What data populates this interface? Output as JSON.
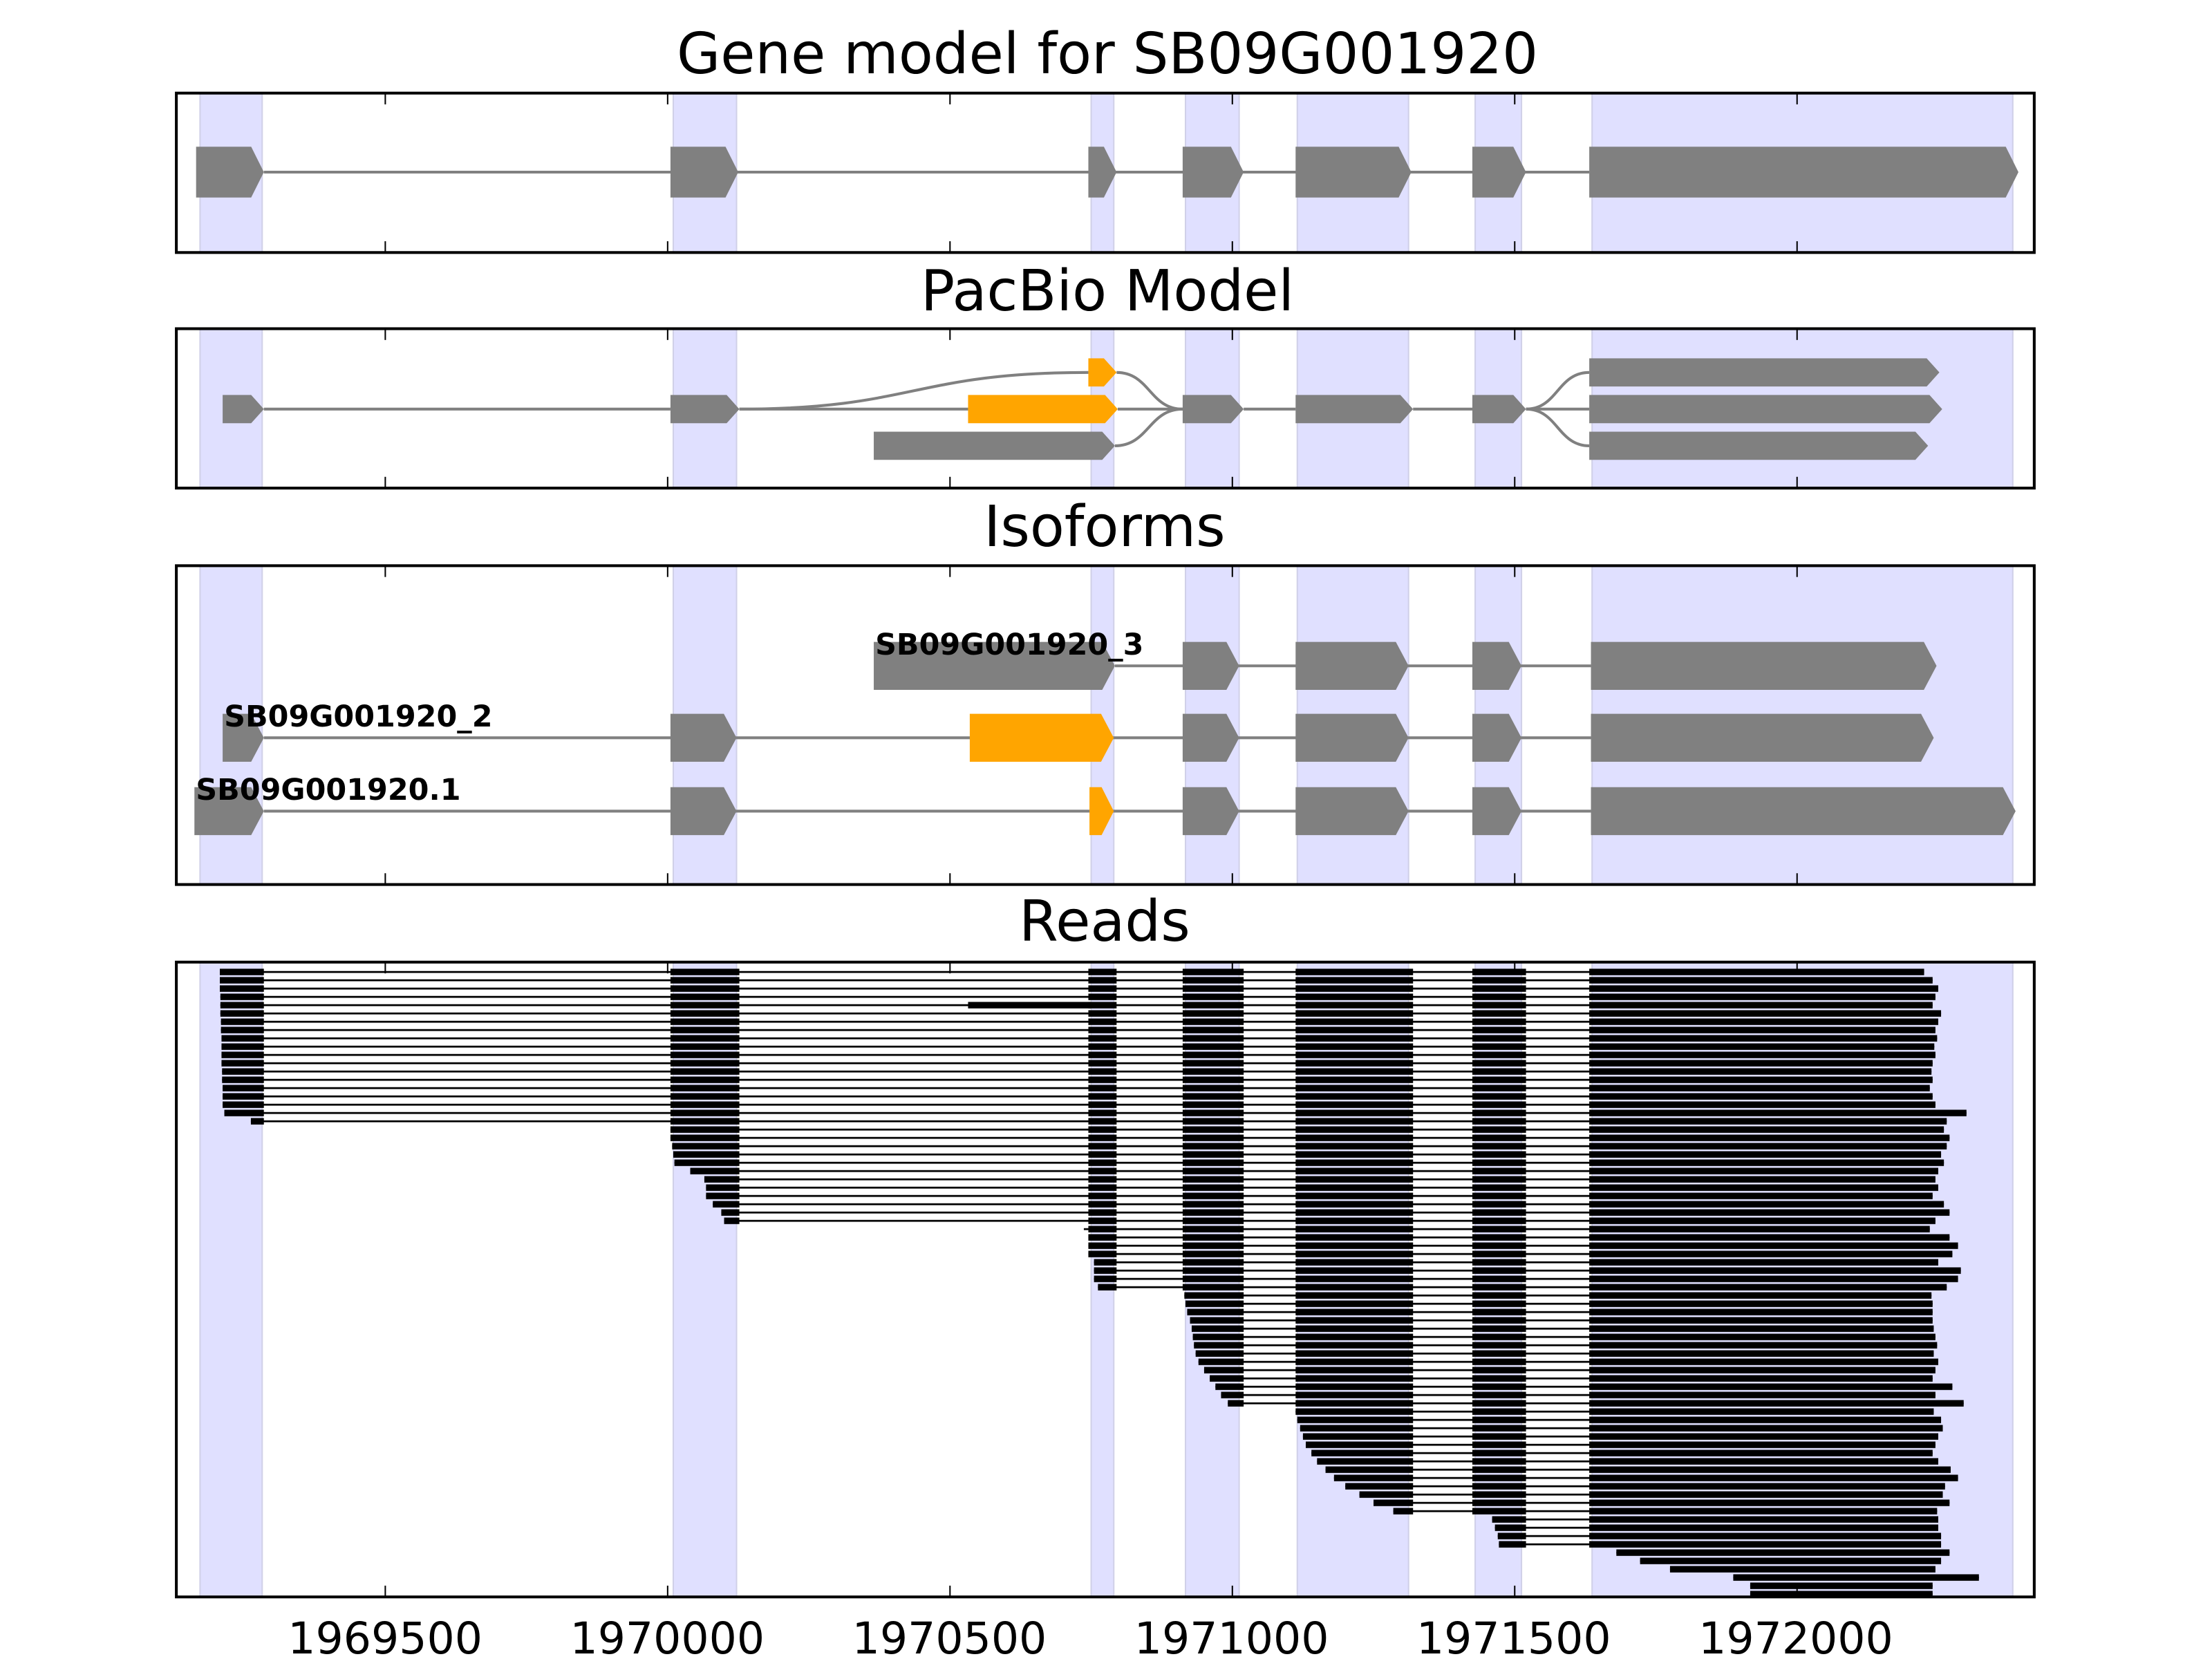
{
  "chart_data": {
    "type": "gene-track",
    "xlim": [
      1969130,
      1972420
    ],
    "xticks": [
      1969500,
      1970000,
      1970500,
      1971000,
      1971500,
      1972000
    ],
    "xtick_labels": [
      "1969500",
      "1970000",
      "1970500",
      "1971000",
      "1971500",
      "1972000"
    ],
    "colors": {
      "exon": "#808080",
      "highlight": "#FFA500",
      "shade": "#E0E0FF",
      "shade_edge": "#D0D0E8",
      "read": "#000000",
      "intron": "#808080"
    },
    "shaded_regions": [
      [
        1969172,
        1969282
      ],
      [
        1970010,
        1970122
      ],
      [
        1970750,
        1970790
      ],
      [
        1970917,
        1971012
      ],
      [
        1971115,
        1971312
      ],
      [
        1971430,
        1971512
      ],
      [
        1971637,
        1972382
      ]
    ],
    "panels": [
      {
        "title": "Gene model for SB09G001920"
      },
      {
        "title": "PacBio Model"
      },
      {
        "title": "Isoforms"
      },
      {
        "title": "Reads"
      }
    ],
    "gene_model": {
      "exons": [
        [
          1969165,
          1969285
        ],
        [
          1970005,
          1970125
        ],
        [
          1970745,
          1970795
        ],
        [
          1970912,
          1971020
        ],
        [
          1971112,
          1971317
        ],
        [
          1971425,
          1971520
        ],
        [
          1971632,
          1972392
        ]
      ]
    },
    "pacbio": {
      "rows": [
        {
          "exons": [
            [
              1970745,
              1970795,
              "highlight"
            ],
            [
              1971632,
              1972252,
              "exon"
            ]
          ]
        },
        {
          "exons": [
            [
              1969212,
              1969285,
              "exon"
            ],
            [
              1970005,
              1970127,
              "exon"
            ],
            [
              1970532,
              1970797,
              "highlight"
            ],
            [
              1970912,
              1971020,
              "exon"
            ],
            [
              1971112,
              1971320,
              "exon"
            ],
            [
              1971425,
              1971520,
              "exon"
            ],
            [
              1971632,
              1972257,
              "exon"
            ]
          ]
        },
        {
          "exons": [
            [
              1970365,
              1970792,
              "exon"
            ],
            [
              1971632,
              1972232,
              "exon"
            ]
          ]
        }
      ],
      "edges": [
        [
          1,
          1969285,
          1,
          1970005
        ],
        [
          1,
          1970127,
          1,
          1970532
        ],
        [
          1,
          1970127,
          0,
          1970745
        ],
        [
          0,
          1970795,
          1,
          1970912
        ],
        [
          1,
          1970797,
          1,
          1970912
        ],
        [
          2,
          1970792,
          1,
          1970912
        ],
        [
          1,
          1971020,
          1,
          1971112
        ],
        [
          1,
          1971320,
          1,
          1971425
        ],
        [
          1,
          1971520,
          0,
          1971632
        ],
        [
          1,
          1971520,
          1,
          1971632
        ],
        [
          1,
          1971520,
          2,
          1971632
        ]
      ]
    },
    "isoforms": [
      {
        "label": "SB09G001920_3",
        "exons": [
          [
            1970365,
            1970792,
            "exon"
          ],
          [
            1970912,
            1971012,
            "exon"
          ],
          [
            1971112,
            1971312,
            "exon"
          ],
          [
            1971425,
            1971512,
            "exon"
          ],
          [
            1971635,
            1972247,
            "exon"
          ]
        ]
      },
      {
        "label": "SB09G001920_2",
        "exons": [
          [
            1969212,
            1969285,
            "exon"
          ],
          [
            1970005,
            1970122,
            "exon"
          ],
          [
            1970535,
            1970790,
            "highlight"
          ],
          [
            1970912,
            1971012,
            "exon"
          ],
          [
            1971112,
            1971312,
            "exon"
          ],
          [
            1971425,
            1971512,
            "exon"
          ],
          [
            1971635,
            1972242,
            "exon"
          ]
        ]
      },
      {
        "label": "SB09G001920.1",
        "exons": [
          [
            1969162,
            1969285,
            "exon"
          ],
          [
            1970005,
            1970122,
            "exon"
          ],
          [
            1970747,
            1970790,
            "highlight"
          ],
          [
            1970912,
            1971012,
            "exon"
          ],
          [
            1971112,
            1971312,
            "exon"
          ],
          [
            1971425,
            1971512,
            "exon"
          ],
          [
            1971635,
            1972387,
            "exon"
          ]
        ]
      }
    ],
    "reads": {
      "exons": [
        [
          1969165,
          1969285
        ],
        [
          1970005,
          1970127
        ],
        [
          1970745,
          1970795
        ],
        [
          1970912,
          1971020
        ],
        [
          1971112,
          1971320
        ],
        [
          1971425,
          1971520
        ],
        [
          1971632,
          1972400
        ]
      ],
      "retained": [
        [
          4,
          1970532,
          1970750
        ]
      ],
      "intervals": [
        [
          1969207,
          1972225
        ],
        [
          1969207,
          1972240
        ],
        [
          1969207,
          1972250
        ],
        [
          1969208,
          1972245
        ],
        [
          1969208,
          1972240
        ],
        [
          1969208,
          1972255
        ],
        [
          1969209,
          1972250
        ],
        [
          1969209,
          1972245
        ],
        [
          1969210,
          1972248
        ],
        [
          1969210,
          1972243
        ],
        [
          1969210,
          1972245
        ],
        [
          1969210,
          1972240
        ],
        [
          1969211,
          1972238
        ],
        [
          1969211,
          1972240
        ],
        [
          1969212,
          1972235
        ],
        [
          1969212,
          1972240
        ],
        [
          1969212,
          1972245
        ],
        [
          1969215,
          1972300
        ],
        [
          1969262,
          1972265
        ],
        [
          1970005,
          1972260
        ],
        [
          1970005,
          1972270
        ],
        [
          1970008,
          1972265
        ],
        [
          1970010,
          1972255
        ],
        [
          1970012,
          1972260
        ],
        [
          1970040,
          1972250
        ],
        [
          1970065,
          1972245
        ],
        [
          1970068,
          1972250
        ],
        [
          1970068,
          1972240
        ],
        [
          1970080,
          1972260
        ],
        [
          1970095,
          1972270
        ],
        [
          1970100,
          1972245
        ],
        [
          1970737,
          1972235
        ],
        [
          1970745,
          1972270
        ],
        [
          1970745,
          1972285
        ],
        [
          1970745,
          1972275
        ],
        [
          1970755,
          1972250
        ],
        [
          1970755,
          1972290
        ],
        [
          1970755,
          1972285
        ],
        [
          1970762,
          1972265
        ],
        [
          1970915,
          1972238
        ],
        [
          1970917,
          1972240
        ],
        [
          1970920,
          1972240
        ],
        [
          1970925,
          1972240
        ],
        [
          1970928,
          1972242
        ],
        [
          1970930,
          1972245
        ],
        [
          1970932,
          1972248
        ],
        [
          1970935,
          1972242
        ],
        [
          1970940,
          1972250
        ],
        [
          1970950,
          1972245
        ],
        [
          1970960,
          1972240
        ],
        [
          1970970,
          1972275
        ],
        [
          1970980,
          1972245
        ],
        [
          1970992,
          1972295
        ],
        [
          1971112,
          1972242
        ],
        [
          1971115,
          1972255
        ],
        [
          1971120,
          1972258
        ],
        [
          1971125,
          1972250
        ],
        [
          1971130,
          1972245
        ],
        [
          1971140,
          1972240
        ],
        [
          1971150,
          1972250
        ],
        [
          1971165,
          1972272
        ],
        [
          1971180,
          1972285
        ],
        [
          1971200,
          1972262
        ],
        [
          1971225,
          1972258
        ],
        [
          1971250,
          1972270
        ],
        [
          1971285,
          1972248
        ],
        [
          1971460,
          1972250
        ],
        [
          1971465,
          1972250
        ],
        [
          1971470,
          1972255
        ],
        [
          1971472,
          1972255
        ],
        [
          1971680,
          1972270
        ],
        [
          1971722,
          1972255
        ],
        [
          1971775,
          1972245
        ],
        [
          1971887,
          1972322
        ],
        [
          1971917,
          1972240
        ],
        [
          1971917,
          1972240
        ]
      ]
    }
  }
}
